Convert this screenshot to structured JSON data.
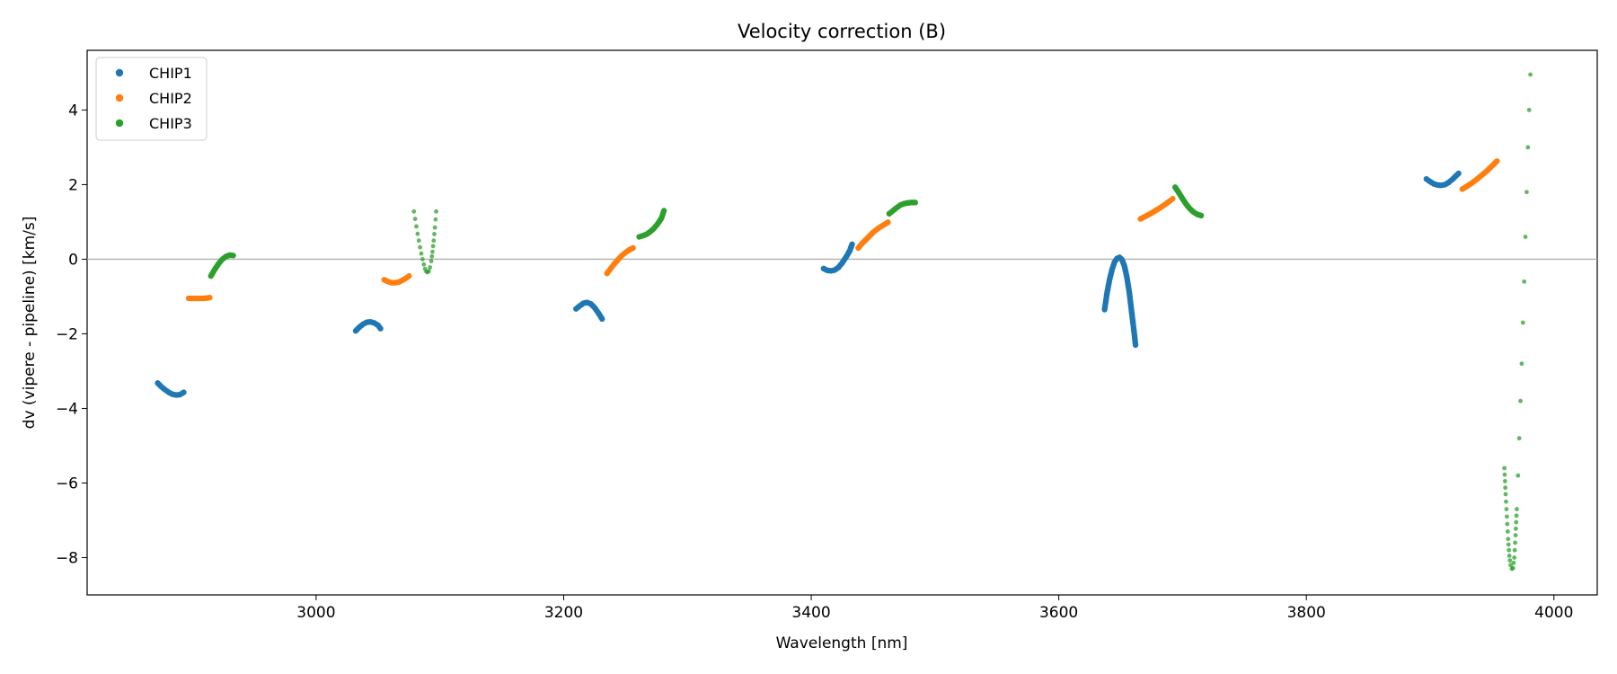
{
  "chart_data": {
    "type": "scatter",
    "title": "Velocity correction (B)",
    "xlabel": "Wavelength [nm]",
    "ylabel": "dv (vipere - pipeline) [km/s]",
    "xlim": [
      2815,
      4035
    ],
    "ylim": [
      -9.0,
      5.6
    ],
    "xticks": [
      3000,
      3200,
      3400,
      3600,
      3800,
      4000
    ],
    "yticks": [
      -8,
      -6,
      -4,
      -2,
      0,
      2,
      4
    ],
    "reference_line": 0,
    "grid": false,
    "legend": {
      "position": "top-left",
      "entries": [
        "CHIP1",
        "CHIP2",
        "CHIP3"
      ]
    },
    "series": [
      {
        "name": "CHIP1",
        "color": "#1f77b4",
        "segments": [
          {
            "points": [
              [
                2872,
                -3.32
              ],
              [
                2875,
                -3.42
              ],
              [
                2878,
                -3.5
              ],
              [
                2881,
                -3.57
              ],
              [
                2884,
                -3.62
              ],
              [
                2887,
                -3.64
              ],
              [
                2890,
                -3.63
              ],
              [
                2893,
                -3.57
              ]
            ]
          },
          {
            "points": [
              [
                3032,
                -1.92
              ],
              [
                3035,
                -1.82
              ],
              [
                3038,
                -1.74
              ],
              [
                3041,
                -1.69
              ],
              [
                3044,
                -1.68
              ],
              [
                3047,
                -1.71
              ],
              [
                3050,
                -1.77
              ],
              [
                3052,
                -1.86
              ]
            ]
          },
          {
            "points": [
              [
                3210,
                -1.33
              ],
              [
                3213,
                -1.25
              ],
              [
                3216,
                -1.18
              ],
              [
                3219,
                -1.16
              ],
              [
                3222,
                -1.2
              ],
              [
                3225,
                -1.3
              ],
              [
                3228,
                -1.44
              ],
              [
                3231,
                -1.6
              ]
            ]
          },
          {
            "points": [
              [
                3410,
                -0.25
              ],
              [
                3413,
                -0.3
              ],
              [
                3416,
                -0.31
              ],
              [
                3419,
                -0.29
              ],
              [
                3422,
                -0.22
              ],
              [
                3425,
                -0.1
              ],
              [
                3428,
                0.05
              ],
              [
                3431,
                0.22
              ],
              [
                3433,
                0.4
              ]
            ]
          },
          {
            "points": [
              [
                3637,
                -1.35
              ],
              [
                3639,
                -0.9
              ],
              [
                3641,
                -0.55
              ],
              [
                3643,
                -0.28
              ],
              [
                3645,
                -0.08
              ],
              [
                3647,
                0.02
              ],
              [
                3649,
                0.05
              ],
              [
                3651,
                -0.01
              ],
              [
                3653,
                -0.18
              ],
              [
                3655,
                -0.48
              ],
              [
                3657,
                -0.9
              ],
              [
                3659,
                -1.45
              ],
              [
                3661,
                -2.0
              ],
              [
                3662,
                -2.3
              ]
            ]
          },
          {
            "points": [
              [
                3897,
                2.15
              ],
              [
                3900,
                2.08
              ],
              [
                3903,
                2.02
              ],
              [
                3906,
                1.99
              ],
              [
                3909,
                1.98
              ],
              [
                3912,
                2.0
              ],
              [
                3915,
                2.06
              ],
              [
                3918,
                2.14
              ],
              [
                3921,
                2.24
              ],
              [
                3923,
                2.3
              ]
            ]
          }
        ]
      },
      {
        "name": "CHIP2",
        "color": "#ff7f0e",
        "segments": [
          {
            "points": [
              [
                2897,
                -1.05
              ],
              [
                2900,
                -1.05
              ],
              [
                2903,
                -1.05
              ],
              [
                2906,
                -1.05
              ],
              [
                2909,
                -1.05
              ],
              [
                2912,
                -1.04
              ],
              [
                2914,
                -1.03
              ]
            ]
          },
          {
            "points": [
              [
                3055,
                -0.55
              ],
              [
                3058,
                -0.6
              ],
              [
                3061,
                -0.63
              ],
              [
                3064,
                -0.63
              ],
              [
                3067,
                -0.61
              ],
              [
                3070,
                -0.56
              ],
              [
                3073,
                -0.5
              ],
              [
                3075,
                -0.45
              ]
            ]
          },
          {
            "points": [
              [
                3235,
                -0.38
              ],
              [
                3238,
                -0.25
              ],
              [
                3241,
                -0.12
              ],
              [
                3244,
                -0.01
              ],
              [
                3247,
                0.1
              ],
              [
                3250,
                0.18
              ],
              [
                3253,
                0.25
              ],
              [
                3256,
                0.3
              ]
            ]
          },
          {
            "points": [
              [
                3438,
                0.3
              ],
              [
                3441,
                0.42
              ],
              [
                3444,
                0.52
              ],
              [
                3447,
                0.62
              ],
              [
                3450,
                0.72
              ],
              [
                3453,
                0.8
              ],
              [
                3456,
                0.87
              ],
              [
                3459,
                0.93
              ],
              [
                3462,
                0.99
              ]
            ]
          },
          {
            "points": [
              [
                3666,
                1.08
              ],
              [
                3670,
                1.15
              ],
              [
                3674,
                1.22
              ],
              [
                3678,
                1.3
              ],
              [
                3682,
                1.38
              ],
              [
                3686,
                1.47
              ],
              [
                3690,
                1.57
              ],
              [
                3692,
                1.62
              ]
            ]
          },
          {
            "points": [
              [
                3926,
                1.88
              ],
              [
                3930,
                1.96
              ],
              [
                3934,
                2.05
              ],
              [
                3938,
                2.15
              ],
              [
                3942,
                2.26
              ],
              [
                3946,
                2.37
              ],
              [
                3950,
                2.5
              ],
              [
                3954,
                2.63
              ]
            ]
          }
        ]
      },
      {
        "name": "CHIP3",
        "color": "#2ca02c",
        "segments": [
          {
            "points": [
              [
                2915,
                -0.45
              ],
              [
                2918,
                -0.28
              ],
              [
                2921,
                -0.13
              ],
              [
                2924,
                -0.01
              ],
              [
                2927,
                0.07
              ],
              [
                2930,
                0.11
              ],
              [
                2933,
                0.1
              ]
            ]
          },
          {
            "points": [
              [
                3079,
                1.28
              ],
              [
                3080,
                1.08
              ],
              [
                3081,
                0.88
              ],
              [
                3082,
                0.68
              ],
              [
                3083,
                0.5
              ],
              [
                3084,
                0.32
              ],
              [
                3085,
                0.15
              ],
              [
                3086,
                0.0
              ],
              [
                3087,
                -0.14
              ],
              [
                3088,
                -0.26
              ],
              [
                3089,
                -0.33
              ],
              [
                3090,
                -0.35
              ],
              [
                3091,
                -0.32
              ],
              [
                3092,
                -0.22
              ],
              [
                3093,
                -0.05
              ],
              [
                3094,
                0.2
              ],
              [
                3095,
                0.5
              ],
              [
                3096,
                0.85
              ],
              [
                3097,
                1.28
              ]
            ]
          },
          {
            "points": [
              [
                3261,
                0.6
              ],
              [
                3264,
                0.63
              ],
              [
                3267,
                0.67
              ],
              [
                3270,
                0.74
              ],
              [
                3273,
                0.83
              ],
              [
                3276,
                0.95
              ],
              [
                3279,
                1.1
              ],
              [
                3281,
                1.3
              ]
            ]
          },
          {
            "points": [
              [
                3463,
                1.22
              ],
              [
                3466,
                1.3
              ],
              [
                3469,
                1.38
              ],
              [
                3472,
                1.45
              ],
              [
                3475,
                1.49
              ],
              [
                3478,
                1.51
              ],
              [
                3481,
                1.52
              ],
              [
                3484,
                1.52
              ]
            ]
          },
          {
            "points": [
              [
                3694,
                1.93
              ],
              [
                3697,
                1.78
              ],
              [
                3700,
                1.62
              ],
              [
                3703,
                1.47
              ],
              [
                3706,
                1.35
              ],
              [
                3709,
                1.26
              ],
              [
                3712,
                1.2
              ],
              [
                3715,
                1.17
              ]
            ]
          },
          {
            "points": [
              [
                3960,
                -5.6
              ],
              [
                3961,
                -6.3
              ],
              [
                3962,
                -6.9
              ],
              [
                3963,
                -7.5
              ],
              [
                3964,
                -7.95
              ],
              [
                3965,
                -8.2
              ],
              [
                3966,
                -8.3
              ],
              [
                3967,
                -8.28
              ],
              [
                3968,
                -8.0
              ],
              [
                3969,
                -7.4
              ],
              [
                3970,
                -6.7
              ],
              [
                3971,
                -5.8
              ],
              [
                3972,
                -4.8
              ],
              [
                3973,
                -3.8
              ],
              [
                3974,
                -2.8
              ],
              [
                3975,
                -1.7
              ],
              [
                3976,
                -0.6
              ],
              [
                3977,
                0.6
              ],
              [
                3978,
                1.8
              ],
              [
                3979,
                3.0
              ],
              [
                3980,
                4.0
              ],
              [
                3981,
                4.95
              ]
            ]
          }
        ]
      }
    ]
  }
}
